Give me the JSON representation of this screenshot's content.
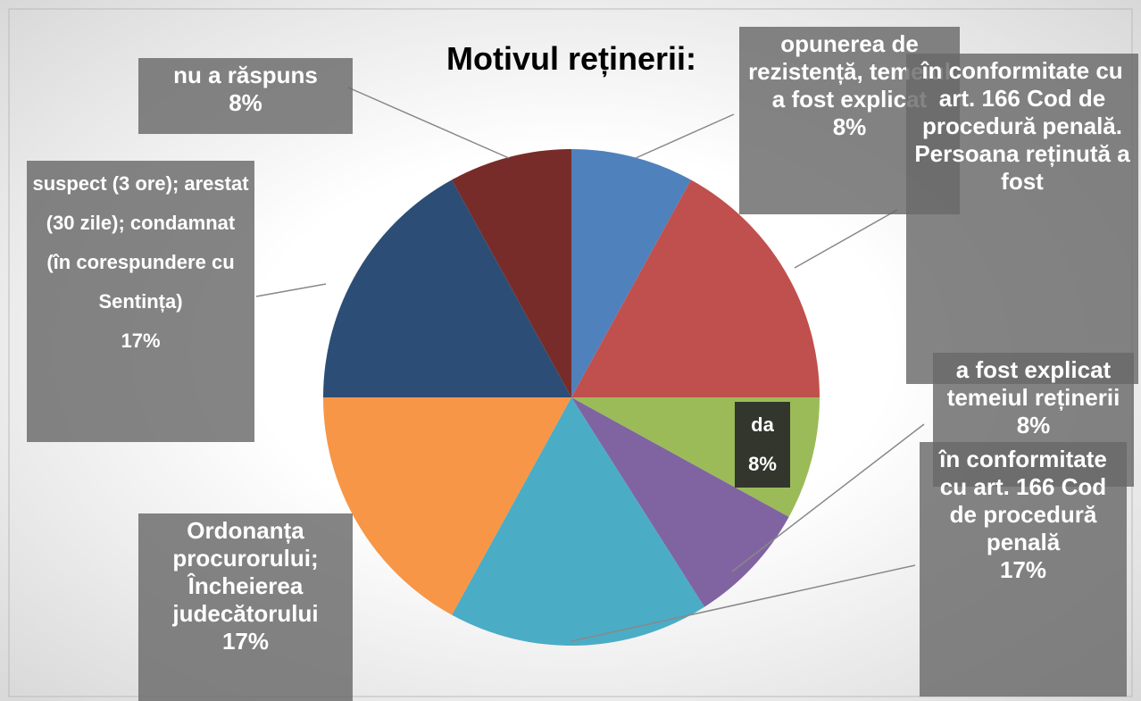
{
  "chart_data": {
    "type": "pie",
    "title": "Motivul reținerii:",
    "categories": [
      "opunerea de rezistență, temeiul a fost explicat",
      "în conformitate cu art. 166 Cod de procedură penală. Persoana reținută a fost",
      "da",
      "a fost explicat temeiul reținerii",
      "în conformitate cu art. 166 Cod de procedură penală",
      "Ordonanța procurorului; Încheierea judecătorului",
      "suspect (3 ore); arestat (30 zile); condamnat (în corespundere cu Sentința)",
      "nu a răspuns"
    ],
    "values": [
      8,
      17,
      8,
      8,
      17,
      17,
      17,
      8
    ],
    "value_labels": [
      "8%",
      null,
      "8%",
      "8%",
      "17%",
      "17%",
      "17%",
      "8%"
    ],
    "colors": [
      "#4f81bd",
      "#c0504d",
      "#9bbb59",
      "#8064a2",
      "#4bacc6",
      "#f79646",
      "#2c4d75",
      "#772c2a"
    ]
  }
}
